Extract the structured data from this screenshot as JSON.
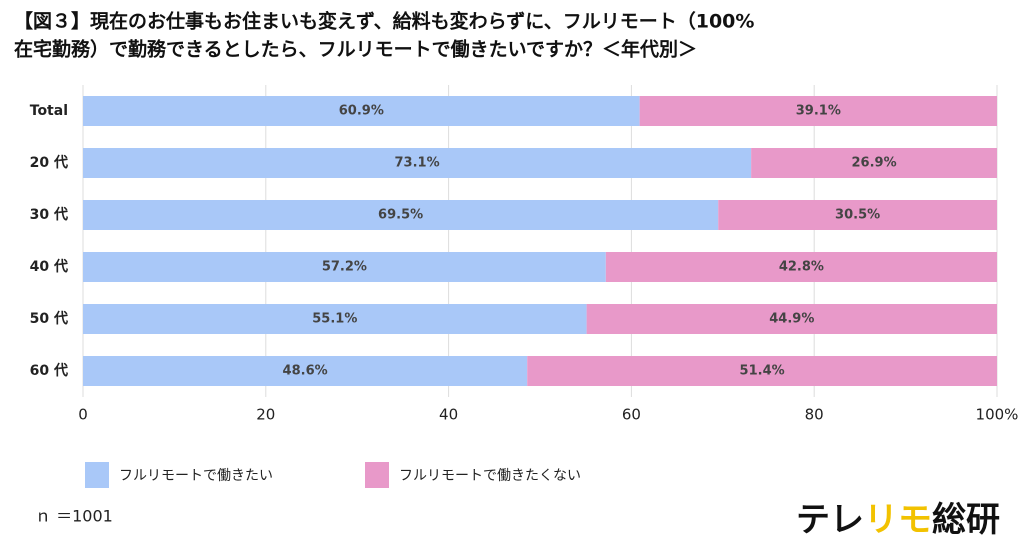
{
  "chart_data": {
    "type": "stacked-bar-horizontal",
    "title": [
      "【図３】現在のお仕事もお住まいも変えず、給料も変わらずに、フルリモート（100%",
      "在宅勤務）で勤務できるとしたら、フルリモートで働きたいですか？＜年代別＞"
    ],
    "categories": [
      "Total",
      "20 代",
      "30 代",
      "40 代",
      "50 代",
      "60 代"
    ],
    "series": [
      {
        "name": "フルリモートで働きたい",
        "color": "#a9c8f8",
        "values": [
          60.9,
          73.1,
          69.5,
          57.2,
          55.1,
          48.6
        ],
        "value_labels": [
          "60.9%",
          "73.1%",
          "69.5%",
          "57.2%",
          "55.1%",
          "48.6%"
        ]
      },
      {
        "name": "フルリモートで働きたくない",
        "color": "#e899c9",
        "values": [
          39.1,
          26.9,
          30.5,
          42.8,
          44.9,
          51.4
        ],
        "value_labels": [
          "39.1%",
          "26.9%",
          "30.5%",
          "42.8%",
          "44.9%",
          "51.4%"
        ]
      }
    ],
    "xlim": [
      0,
      100
    ],
    "xticks": [
      0,
      20,
      40,
      60,
      80,
      {
        "value": 100,
        "label": "100%"
      }
    ],
    "grid": true,
    "note": "ｎ ＝1001",
    "brand": [
      {
        "text": "テレ",
        "color": "#111111"
      },
      {
        "text": "リモ",
        "color": "#f2c200"
      },
      {
        "text": "総研",
        "color": "#111111"
      }
    ]
  }
}
